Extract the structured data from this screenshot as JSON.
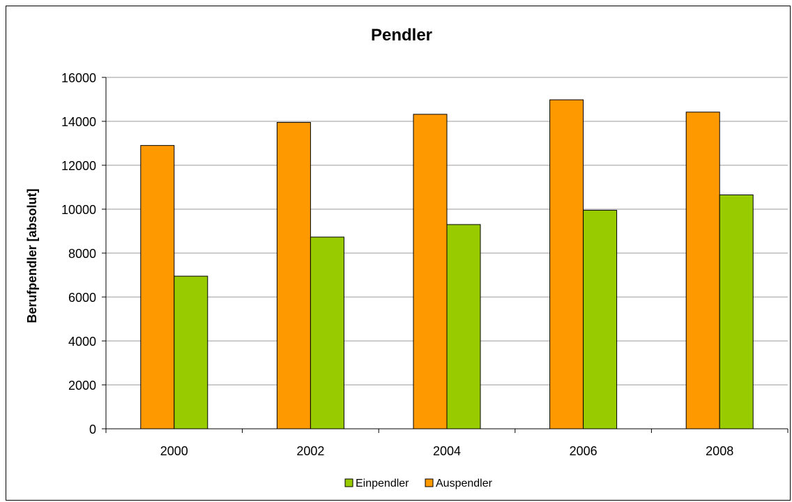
{
  "chart_data": {
    "type": "bar",
    "title": "Pendler",
    "xlabel": "",
    "ylabel": "Berufpendler [absolut]",
    "categories": [
      "2000",
      "2002",
      "2004",
      "2006",
      "2008"
    ],
    "series": [
      {
        "name": "Auspendler",
        "color": "#ff9900",
        "values": [
          12900,
          13950,
          14320,
          14980,
          14420
        ]
      },
      {
        "name": "Einpendler",
        "color": "#99cc00",
        "values": [
          6950,
          8730,
          9300,
          9950,
          10650
        ]
      }
    ],
    "legend_order": [
      1,
      0
    ],
    "ylim": [
      0,
      16000
    ],
    "yticks": [
      0,
      2000,
      4000,
      6000,
      8000,
      10000,
      12000,
      14000,
      16000
    ],
    "grid": true,
    "legend_position": "bottom"
  }
}
